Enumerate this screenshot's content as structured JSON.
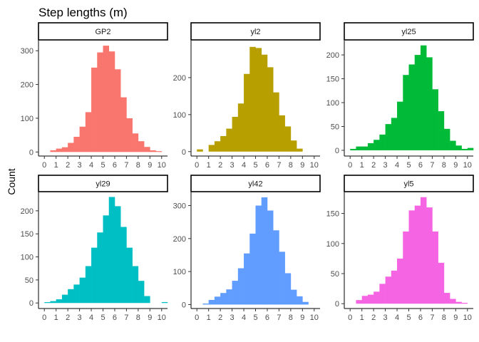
{
  "chart_data": {
    "type": "bar",
    "title": "Step lengths (m)",
    "ylabel": "Count",
    "xlabel": "",
    "grid": false,
    "legend": "none",
    "x_ticks": [
      "0",
      "1",
      "2",
      "3",
      "4",
      "5",
      "6",
      "7",
      "8",
      "9",
      "10"
    ],
    "xlim": [
      -0.5,
      10.5
    ],
    "bin_width": 0.5,
    "bin_starts": [
      0.0,
      0.5,
      1.0,
      1.5,
      2.0,
      2.5,
      3.0,
      3.5,
      4.0,
      4.5,
      5.0,
      5.5,
      6.0,
      6.5,
      7.0,
      7.5,
      8.0,
      8.5,
      9.0,
      9.5,
      10.0
    ],
    "panels": [
      {
        "name": "GP2",
        "color": "#F8766D",
        "ylim": [
          -12,
          330
        ],
        "y_ticks": [
          0,
          100,
          200,
          300
        ],
        "values": [
          0,
          5,
          10,
          14,
          27,
          45,
          75,
          118,
          250,
          295,
          315,
          298,
          245,
          162,
          100,
          55,
          32,
          15,
          5,
          1,
          0
        ]
      },
      {
        "name": "yl2",
        "color": "#B79F00",
        "ylim": [
          -12,
          300
        ],
        "y_ticks": [
          0,
          100,
          200
        ],
        "values": [
          6,
          0,
          18,
          28,
          42,
          62,
          94,
          130,
          210,
          283,
          280,
          262,
          228,
          160,
          98,
          68,
          30,
          8,
          0,
          0,
          0
        ]
      },
      {
        "name": "yl25",
        "color": "#00BA38",
        "ylim": [
          -12,
          230
        ],
        "y_ticks": [
          0,
          50,
          100,
          150,
          200
        ],
        "values": [
          3,
          8,
          8,
          15,
          22,
          33,
          55,
          68,
          102,
          158,
          180,
          200,
          220,
          195,
          128,
          82,
          45,
          20,
          10,
          3,
          5
        ]
      },
      {
        "name": "yl29",
        "color": "#00BFC4",
        "ylim": [
          -12,
          240
        ],
        "y_ticks": [
          0,
          50,
          100,
          150,
          200
        ],
        "values": [
          1,
          4,
          8,
          18,
          30,
          40,
          55,
          80,
          120,
          153,
          190,
          230,
          210,
          165,
          120,
          80,
          48,
          15,
          0,
          0,
          2
        ]
      },
      {
        "name": "yl42",
        "color": "#619CFF",
        "ylim": [
          -12,
          340
        ],
        "y_ticks": [
          0,
          100,
          200,
          300
        ],
        "values": [
          0,
          3,
          14,
          24,
          35,
          46,
          72,
          110,
          155,
          215,
          300,
          325,
          285,
          225,
          160,
          95,
          45,
          25,
          8,
          0,
          0
        ]
      },
      {
        "name": "yl5",
        "color": "#F564E3",
        "ylim": [
          -8,
          185
        ],
        "y_ticks": [
          0,
          50,
          100,
          150
        ],
        "values": [
          0,
          6,
          13,
          15,
          20,
          33,
          45,
          55,
          75,
          120,
          155,
          163,
          177,
          160,
          120,
          68,
          18,
          8,
          3,
          1,
          0
        ]
      }
    ]
  }
}
